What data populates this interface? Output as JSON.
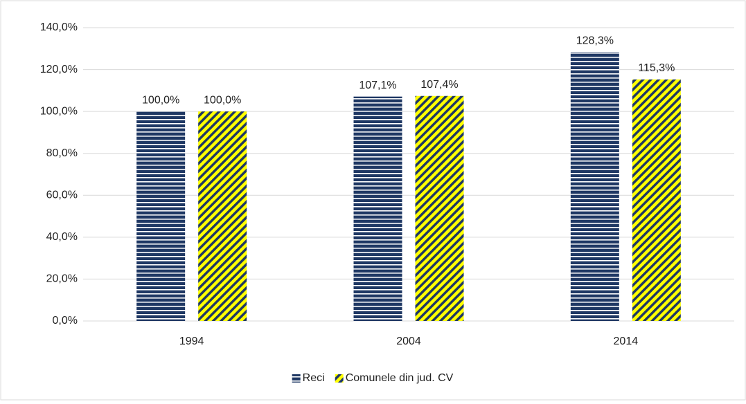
{
  "chart_data": {
    "type": "bar",
    "categories": [
      "1994",
      "2004",
      "2014"
    ],
    "series": [
      {
        "name": "Reci",
        "color": "#1f3864",
        "values": [
          100.0,
          107.1,
          128.3
        ],
        "value_labels": [
          "100,0%",
          "107,1%",
          "128,3%"
        ]
      },
      {
        "name": "Comunele din jud. CV",
        "color": "#ffff00",
        "values": [
          100.0,
          107.4,
          115.3
        ],
        "value_labels": [
          "100,0%",
          "107,4%",
          "115,3%"
        ]
      }
    ],
    "ylim": [
      0,
      140
    ],
    "yticks": [
      {
        "value": 0,
        "label": "0,0%"
      },
      {
        "value": 20,
        "label": "20,0%"
      },
      {
        "value": 40,
        "label": "40,0%"
      },
      {
        "value": 60,
        "label": "60,0%"
      },
      {
        "value": 80,
        "label": "80,0%"
      },
      {
        "value": 100,
        "label": "100,0%"
      },
      {
        "value": 120,
        "label": "120,0%"
      },
      {
        "value": 140,
        "label": "140,0%"
      }
    ],
    "grid": true,
    "legend": "bottom"
  }
}
